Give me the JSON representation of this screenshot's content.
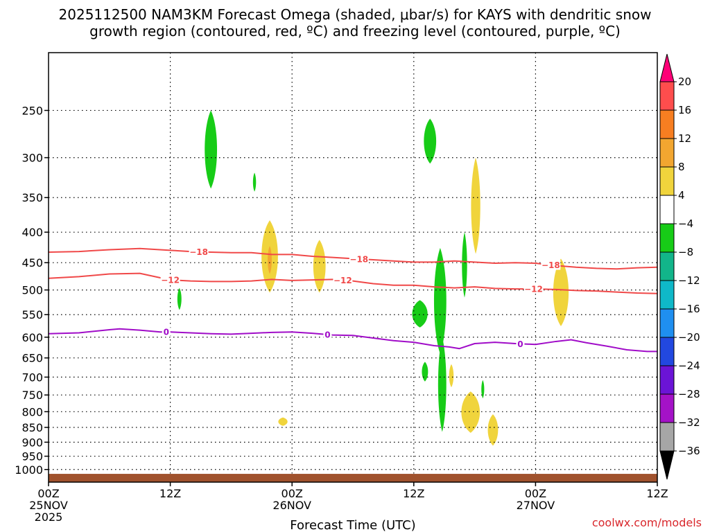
{
  "chart_data": {
    "type": "heatmap",
    "title_lines": [
      "2025112500 NAM3KM Forecast Omega (shaded, μbar/s) for KAYS with dendritic snow",
      "growth region (contoured, red, ºC) and freezing level (contoured, purple, ºC)"
    ],
    "xlabel": "Forecast Time (UTC)",
    "ylabel": "",
    "watermark": "coolwx.com/models",
    "x_range_hours": [
      0,
      60
    ],
    "x_ticks": [
      {
        "hour": 0,
        "lines": [
          "00Z",
          "25NOV",
          "2025"
        ]
      },
      {
        "hour": 12,
        "lines": [
          "12Z"
        ]
      },
      {
        "hour": 24,
        "lines": [
          "00Z",
          "26NOV"
        ]
      },
      {
        "hour": 36,
        "lines": [
          "12Z"
        ]
      },
      {
        "hour": 48,
        "lines": [
          "00Z",
          "27NOV"
        ]
      },
      {
        "hour": 60,
        "lines": [
          "12Z"
        ]
      }
    ],
    "y_axis": {
      "quantity": "pressure (hPa)",
      "scale": "log",
      "reversed": true,
      "range": [
        1050,
        200
      ],
      "ticks": [
        250,
        300,
        350,
        400,
        450,
        500,
        550,
        600,
        650,
        700,
        750,
        800,
        850,
        900,
        950,
        1000
      ],
      "grid": "dotted"
    },
    "colorbar": {
      "labels": [
        20,
        16,
        12,
        8,
        4,
        -4,
        -8,
        -12,
        -16,
        -20,
        -24,
        -28,
        -32,
        -36
      ],
      "colors": [
        "#fe0077",
        "#fe4d4d",
        "#f77e21",
        "#f2a630",
        "#f0d43c",
        "#ffffff",
        "#17cc17",
        "#12b58a",
        "#0fb8c8",
        "#1f8ff0",
        "#2248e0",
        "#6b14d6",
        "#a412c7",
        "#a6a6a6",
        "#000000"
      ]
    },
    "omega_shading": [
      {
        "time": 16.0,
        "p_top": 250,
        "p_bottom": 338,
        "half_width_h": 0.6,
        "value": -6,
        "color": "#17cc17"
      },
      {
        "time": 20.3,
        "p_top": 318,
        "p_bottom": 342,
        "half_width_h": 0.15,
        "value": -6,
        "color": "#17cc17"
      },
      {
        "time": 21.8,
        "p_top": 382,
        "p_bottom": 505,
        "half_width_h": 0.8,
        "value": 6,
        "color": "#f0d43c"
      },
      {
        "time": 21.8,
        "p_top": 422,
        "p_bottom": 470,
        "half_width_h": 0.2,
        "value": 9,
        "color": "#f2a630"
      },
      {
        "time": 26.7,
        "p_top": 412,
        "p_bottom": 505,
        "half_width_h": 0.6,
        "value": 5,
        "color": "#f0d43c"
      },
      {
        "time": 12.9,
        "p_top": 496,
        "p_bottom": 540,
        "half_width_h": 0.2,
        "value": -5,
        "color": "#17cc17"
      },
      {
        "time": 23.1,
        "p_top": 818,
        "p_bottom": 845,
        "half_width_h": 0.45,
        "value": 5,
        "color": "#f0d43c"
      },
      {
        "time": 37.6,
        "p_top": 258,
        "p_bottom": 307,
        "half_width_h": 0.6,
        "value": -6,
        "color": "#17cc17"
      },
      {
        "time": 36.6,
        "p_top": 520,
        "p_bottom": 578,
        "half_width_h": 0.75,
        "value": -6,
        "color": "#17cc17"
      },
      {
        "time": 38.6,
        "p_top": 425,
        "p_bottom": 640,
        "half_width_h": 0.6,
        "value": -6,
        "color": "#17cc17"
      },
      {
        "time": 38.8,
        "p_top": 600,
        "p_bottom": 865,
        "half_width_h": 0.4,
        "value": -6,
        "color": "#17cc17"
      },
      {
        "time": 41.0,
        "p_top": 400,
        "p_bottom": 515,
        "half_width_h": 0.25,
        "value": -5,
        "color": "#17cc17"
      },
      {
        "time": 42.1,
        "p_top": 300,
        "p_bottom": 435,
        "half_width_h": 0.45,
        "value": 6,
        "color": "#f0d43c"
      },
      {
        "time": 37.1,
        "p_top": 660,
        "p_bottom": 712,
        "half_width_h": 0.3,
        "value": -5,
        "color": "#17cc17"
      },
      {
        "time": 39.7,
        "p_top": 666,
        "p_bottom": 728,
        "half_width_h": 0.22,
        "value": 5,
        "color": "#f0d43c"
      },
      {
        "time": 42.8,
        "p_top": 708,
        "p_bottom": 760,
        "half_width_h": 0.14,
        "value": -5,
        "color": "#17cc17"
      },
      {
        "time": 41.6,
        "p_top": 740,
        "p_bottom": 868,
        "half_width_h": 0.9,
        "value": 5,
        "color": "#f0d43c"
      },
      {
        "time": 43.8,
        "p_top": 808,
        "p_bottom": 912,
        "half_width_h": 0.5,
        "value": 5,
        "color": "#f0d43c"
      },
      {
        "time": 50.5,
        "p_top": 443,
        "p_bottom": 575,
        "half_width_h": 0.75,
        "value": 6,
        "color": "#f0d43c"
      }
    ],
    "series": [
      {
        "name": "-18",
        "color": "#f04848",
        "label_at_hours": [
          14.8,
          30.6,
          49.5
        ],
        "x": [
          0,
          3,
          6,
          9,
          12,
          14,
          16,
          18,
          20,
          22,
          24,
          26,
          28,
          30,
          32,
          34,
          36,
          38,
          40,
          42,
          44,
          46,
          48,
          50,
          52,
          54,
          56,
          58,
          60
        ],
        "y": [
          432,
          431,
          428,
          426,
          429,
          431,
          432,
          433,
          433,
          436,
          436,
          439,
          441,
          443,
          445,
          447,
          449,
          449,
          447,
          449,
          451,
          450,
          451,
          455,
          458,
          460,
          461,
          459,
          458
        ]
      },
      {
        "name": "-12",
        "color": "#f04848",
        "label_at_hours": [
          12.0,
          29.0,
          47.8
        ],
        "x": [
          0,
          3,
          6,
          9,
          12,
          14,
          16,
          18,
          20,
          22,
          24,
          26,
          28,
          30,
          32,
          34,
          36,
          38,
          40,
          42,
          44,
          46,
          48,
          50,
          52,
          54,
          56,
          58,
          60
        ],
        "y": [
          478,
          475,
          470,
          469,
          481,
          483,
          484,
          484,
          483,
          480,
          482,
          481,
          480,
          483,
          488,
          491,
          491,
          494,
          496,
          494,
          497,
          498,
          498,
          499,
          501,
          502,
          504,
          506,
          507
        ]
      },
      {
        "name": "0",
        "color": "#a00cc8",
        "label_at_hours": [
          11.6,
          27.5,
          46.5
        ],
        "x": [
          0,
          3,
          6,
          7,
          9,
          11,
          12,
          14,
          16,
          18,
          20,
          22,
          24,
          26,
          28,
          30,
          32,
          34,
          36,
          38,
          39.5,
          40.5,
          42,
          44,
          46,
          48,
          50,
          51.5,
          53,
          55,
          57,
          59,
          60
        ],
        "y": [
          592,
          590,
          583,
          581,
          584,
          588,
          588,
          590,
          592,
          593,
          591,
          589,
          588,
          591,
          595,
          596,
          602,
          608,
          612,
          620,
          623,
          627,
          615,
          612,
          615,
          617,
          610,
          606,
          613,
          621,
          630,
          634,
          634
        ]
      }
    ]
  },
  "ground": {
    "color": "#a0522d"
  }
}
